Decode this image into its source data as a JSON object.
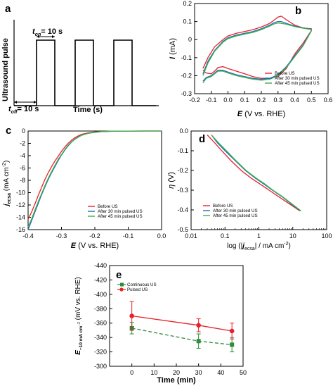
{
  "panel_a": {
    "letter": "a",
    "ylabel": "Ultrasound pulse",
    "xlabel": "Time (s)",
    "t_on_label": "t",
    "t_on_sub": "on",
    "t_on_value": "= 10 s",
    "t_off_label": "t",
    "t_off_sub": "off",
    "t_off_value": "= 10 s"
  },
  "chart_data": [
    {
      "id": "b",
      "letter": "b",
      "type": "line",
      "xlabel_main": "E",
      "xlabel_rest": " (V vs. RHE)",
      "ylabel_main": "I",
      "ylabel_rest": " (mA)",
      "xlim": [
        -0.2,
        0.6
      ],
      "ylim": [
        -0.3,
        0.2
      ],
      "xticks": [
        -0.2,
        -0.1,
        0.0,
        0.1,
        0.2,
        0.3,
        0.4,
        0.5,
        0.6
      ],
      "xtick_labels": [
        "-0.2",
        "-0.1",
        "0.0",
        "0.1",
        "0.2",
        "0.3",
        "0.4",
        "0.5",
        "0.6"
      ],
      "yticks": [
        -0.3,
        -0.2,
        -0.1,
        0.0,
        0.1,
        0.2
      ],
      "ytick_labels": [
        "-0.3",
        "-0.2",
        "-0.1",
        "0",
        "0.1",
        "0.2"
      ],
      "legend": "bottom-right",
      "series": [
        {
          "name": "Before US",
          "color": "#e8212a",
          "x": [
            -0.15,
            -0.12,
            -0.08,
            -0.03,
            0.0,
            0.05,
            0.1,
            0.15,
            0.2,
            0.25,
            0.28,
            0.3,
            0.32,
            0.35,
            0.4,
            0.45,
            0.5,
            0.5,
            0.45,
            0.4,
            0.35,
            0.3,
            0.25,
            0.2,
            0.15,
            0.1,
            0.05,
            0.0,
            -0.03,
            -0.06,
            -0.08,
            -0.1,
            -0.13,
            -0.15
          ],
          "y": [
            -0.16,
            -0.1,
            -0.04,
            0.0,
            0.02,
            0.035,
            0.045,
            0.055,
            0.07,
            0.09,
            0.11,
            0.125,
            0.13,
            0.11,
            0.08,
            0.065,
            0.06,
            0.05,
            -0.02,
            -0.08,
            -0.16,
            -0.205,
            -0.215,
            -0.215,
            -0.205,
            -0.19,
            -0.175,
            -0.16,
            -0.15,
            -0.155,
            -0.175,
            -0.19,
            -0.185,
            -0.17
          ]
        },
        {
          "name": "After 30 min pulsed US",
          "color": "#1f6fbf",
          "x": [
            -0.15,
            -0.12,
            -0.08,
            -0.03,
            0.0,
            0.05,
            0.1,
            0.15,
            0.2,
            0.25,
            0.28,
            0.3,
            0.32,
            0.35,
            0.4,
            0.45,
            0.5,
            0.5,
            0.45,
            0.4,
            0.35,
            0.3,
            0.25,
            0.2,
            0.15,
            0.1,
            0.05,
            0.0,
            -0.03,
            -0.06,
            -0.08,
            -0.1,
            -0.13,
            -0.15
          ],
          "y": [
            -0.19,
            -0.12,
            -0.06,
            -0.01,
            0.01,
            0.025,
            0.035,
            0.045,
            0.06,
            0.08,
            0.095,
            0.1,
            0.1,
            0.09,
            0.075,
            0.065,
            0.058,
            0.05,
            -0.03,
            -0.09,
            -0.15,
            -0.195,
            -0.215,
            -0.22,
            -0.215,
            -0.205,
            -0.195,
            -0.18,
            -0.17,
            -0.17,
            -0.185,
            -0.2,
            -0.21,
            -0.23
          ]
        },
        {
          "name": "After 45 min pulsed US",
          "color": "#3fae49",
          "x": [
            -0.15,
            -0.12,
            -0.08,
            -0.03,
            0.0,
            0.05,
            0.1,
            0.15,
            0.2,
            0.25,
            0.28,
            0.3,
            0.32,
            0.35,
            0.4,
            0.45,
            0.5,
            0.5,
            0.45,
            0.4,
            0.35,
            0.3,
            0.25,
            0.2,
            0.15,
            0.1,
            0.05,
            0.0,
            -0.03,
            -0.06,
            -0.08,
            -0.1,
            -0.13,
            -0.15
          ],
          "y": [
            -0.2,
            -0.13,
            -0.065,
            -0.015,
            0.005,
            0.02,
            0.03,
            0.04,
            0.055,
            0.075,
            0.088,
            0.092,
            0.09,
            0.085,
            0.072,
            0.063,
            0.056,
            0.048,
            -0.035,
            -0.095,
            -0.155,
            -0.2,
            -0.22,
            -0.225,
            -0.22,
            -0.21,
            -0.2,
            -0.185,
            -0.175,
            -0.175,
            -0.19,
            -0.205,
            -0.215,
            -0.24
          ]
        }
      ]
    },
    {
      "id": "c",
      "letter": "c",
      "type": "line",
      "xlabel_main": "E",
      "xlabel_rest": " (V vs. RHE)",
      "ylabel_main": "j",
      "ylabel_sub": "ecsa",
      "ylabel_rest": " (mA cm",
      "ylabel_sup": "-2",
      "ylabel_end": ")",
      "xlim": [
        -0.4,
        0.0
      ],
      "ylim": [
        -16,
        0
      ],
      "xticks": [
        -0.4,
        -0.3,
        -0.2,
        -0.1,
        0.0
      ],
      "xtick_labels": [
        "-0.4",
        "-0.3",
        "-0.2",
        "-0.1",
        "0.0"
      ],
      "yticks": [
        -16,
        -14,
        -12,
        -10,
        -8,
        -6,
        -4,
        -2,
        0
      ],
      "ytick_labels": [
        "-16",
        "-14",
        "-12",
        "-10",
        "-8",
        "-6",
        "-4",
        "-2",
        "0"
      ],
      "legend": "bottom-right",
      "series": [
        {
          "name": "Before US",
          "color": "#e8212a",
          "x": [
            -0.4,
            -0.39,
            -0.38,
            -0.37,
            -0.36,
            -0.35,
            -0.34,
            -0.33,
            -0.32,
            -0.31,
            -0.3,
            -0.29,
            -0.28,
            -0.27,
            -0.26,
            -0.25,
            -0.24,
            -0.22,
            -0.2,
            -0.18,
            -0.15,
            -0.1,
            -0.05,
            0.0
          ],
          "y": [
            -14.3,
            -13.2,
            -11.9,
            -10.5,
            -9.2,
            -7.9,
            -6.8,
            -5.8,
            -4.9,
            -4.1,
            -3.3,
            -2.6,
            -2.0,
            -1.5,
            -1.1,
            -0.8,
            -0.55,
            -0.3,
            -0.15,
            -0.08,
            -0.03,
            -0.01,
            0,
            0
          ]
        },
        {
          "name": "After 30 min pulsed US",
          "color": "#1f6fbf",
          "x": [
            -0.4,
            -0.39,
            -0.38,
            -0.37,
            -0.36,
            -0.35,
            -0.34,
            -0.33,
            -0.32,
            -0.31,
            -0.3,
            -0.29,
            -0.28,
            -0.27,
            -0.26,
            -0.25,
            -0.24,
            -0.22,
            -0.2,
            -0.18,
            -0.15,
            -0.1,
            -0.05,
            0.0
          ],
          "y": [
            -16.0,
            -14.6,
            -13.2,
            -11.8,
            -10.4,
            -9.1,
            -7.9,
            -6.8,
            -5.8,
            -4.8,
            -3.9,
            -3.1,
            -2.4,
            -1.8,
            -1.35,
            -1.0,
            -0.7,
            -0.38,
            -0.2,
            -0.1,
            -0.04,
            -0.01,
            0,
            0
          ]
        },
        {
          "name": "After 45 min pulsed US",
          "color": "#3fae49",
          "x": [
            -0.4,
            -0.39,
            -0.38,
            -0.37,
            -0.36,
            -0.35,
            -0.34,
            -0.33,
            -0.32,
            -0.31,
            -0.3,
            -0.29,
            -0.28,
            -0.27,
            -0.26,
            -0.25,
            -0.24,
            -0.22,
            -0.2,
            -0.18,
            -0.15,
            -0.1,
            -0.05,
            0.0
          ],
          "y": [
            -15.6,
            -14.3,
            -12.9,
            -11.5,
            -10.2,
            -8.9,
            -7.7,
            -6.6,
            -5.6,
            -4.6,
            -3.8,
            -3.0,
            -2.3,
            -1.75,
            -1.3,
            -0.95,
            -0.68,
            -0.36,
            -0.19,
            -0.1,
            -0.04,
            -0.01,
            0,
            0
          ]
        }
      ]
    },
    {
      "id": "d",
      "letter": "d",
      "type": "line",
      "xlabel_main": "log (|",
      "xlabel_italic": "j",
      "xlabel_sub": "ecsa",
      "xlabel_rest": "| / mA cm",
      "xlabel_sup": "-2",
      "xlabel_end": ")",
      "ylabel_main": "η",
      "ylabel_rest": " (V)",
      "xscale": "log",
      "xlim": [
        0.01,
        100
      ],
      "ylim": [
        -0.5,
        0.0
      ],
      "xticks": [
        0.01,
        0.1,
        1,
        10,
        100
      ],
      "xtick_labels": [
        "0.01",
        "0.1",
        "1",
        "10",
        "100"
      ],
      "yticks": [
        -0.5,
        -0.4,
        -0.3,
        -0.2,
        -0.1,
        0.0
      ],
      "ytick_labels": [
        "-0.5",
        "-0.4",
        "-0.3",
        "-0.2",
        "-0.1",
        "0.0"
      ],
      "legend": "bottom-left",
      "series": [
        {
          "name": "Before US",
          "color": "#e8212a",
          "x": [
            0.03,
            0.05,
            0.08,
            0.15,
            0.3,
            0.6,
            1.0,
            2.0,
            4.0,
            8.0,
            12.0,
            16.0
          ],
          "y": [
            -0.02,
            -0.06,
            -0.1,
            -0.15,
            -0.2,
            -0.24,
            -0.265,
            -0.3,
            -0.335,
            -0.37,
            -0.39,
            -0.405
          ]
        },
        {
          "name": "After 30 min pulsed US",
          "color": "#1f6fbf",
          "x": [
            0.04,
            0.06,
            0.1,
            0.2,
            0.4,
            0.8,
            1.3,
            2.5,
            5.0,
            9.0,
            13.0,
            17.0
          ],
          "y": [
            -0.02,
            -0.06,
            -0.1,
            -0.15,
            -0.2,
            -0.24,
            -0.265,
            -0.3,
            -0.335,
            -0.37,
            -0.39,
            -0.405
          ]
        },
        {
          "name": "After 45 min pulsed US",
          "color": "#3fae49",
          "x": [
            0.04,
            0.065,
            0.11,
            0.21,
            0.42,
            0.85,
            1.4,
            2.6,
            5.2,
            9.5,
            13.5,
            17.5
          ],
          "y": [
            -0.02,
            -0.06,
            -0.1,
            -0.15,
            -0.2,
            -0.24,
            -0.265,
            -0.3,
            -0.335,
            -0.37,
            -0.39,
            -0.405
          ]
        }
      ]
    },
    {
      "id": "e",
      "letter": "e",
      "type": "line",
      "xlabel": "Time (min)",
      "ylabel_main": "E",
      "ylabel_sub": "−10 mA cm",
      "ylabel_subsup": "−2",
      "ylabel_rest": " (mV vs. RHE)",
      "xlim": [
        -10,
        50
      ],
      "ylim": [
        -300,
        -440
      ],
      "yinverted": true,
      "xticks": [
        0,
        10,
        20,
        30,
        40,
        50
      ],
      "xtick_labels": [
        "0",
        "10",
        "20",
        "30",
        "40",
        "50"
      ],
      "yticks": [
        -300,
        -320,
        -340,
        -360,
        -380,
        -400,
        -420,
        -440
      ],
      "ytick_labels": [
        "-300",
        "-320",
        "-340",
        "-360",
        "-380",
        "-400",
        "-420",
        "-440"
      ],
      "legend": "top-left",
      "series": [
        {
          "name": "Continuous US",
          "color": "#2e8b3a",
          "marker": "square",
          "dashed": true,
          "x": [
            0,
            30,
            45
          ],
          "y": [
            -353,
            -335,
            -330
          ],
          "err": [
            8,
            10,
            10
          ]
        },
        {
          "name": "Pulsed US",
          "color": "#e8212a",
          "marker": "circle",
          "dashed": false,
          "x": [
            0,
            30,
            45
          ],
          "y": [
            -370,
            -357,
            -349
          ],
          "err": [
            20,
            9,
            11
          ]
        }
      ]
    }
  ]
}
